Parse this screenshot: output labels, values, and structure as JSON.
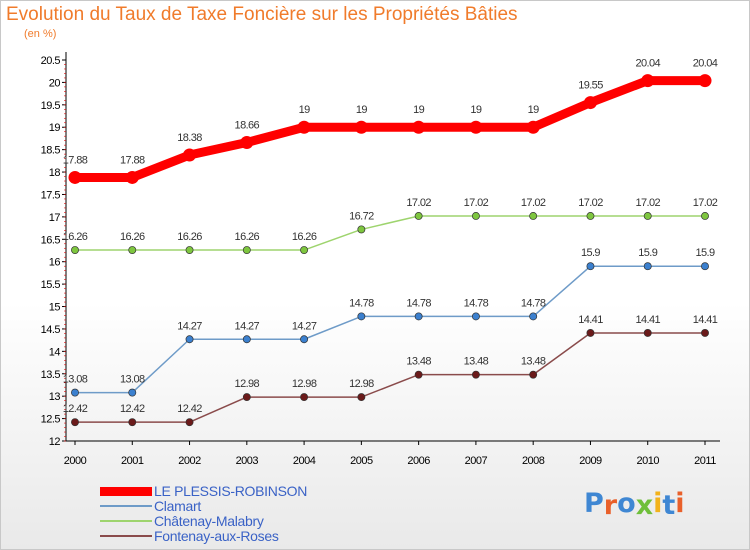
{
  "header": {
    "title": "Evolution du Taux de Taxe Foncière sur les Propriétés Bâties",
    "subtitle": "(en %)"
  },
  "brand": {
    "logo_text": "Proxiti",
    "letter_colors": [
      "#3f87d3",
      "#e9602a",
      "#3f87d3",
      "#6fbf3a",
      "#f2b21b",
      "#3f87d3",
      "#e9602a"
    ]
  },
  "chart_data": {
    "type": "line",
    "x": [
      "2000",
      "2001",
      "2002",
      "2003",
      "2004",
      "2005",
      "2006",
      "2007",
      "2008",
      "2009",
      "2010",
      "2011"
    ],
    "ylim": [
      12,
      20.5
    ],
    "y_ticks": [
      "12",
      "12.5",
      "13",
      "13.5",
      "14",
      "14.5",
      "15",
      "15.5",
      "16",
      "16.5",
      "17",
      "17.5",
      "18",
      "18.5",
      "19",
      "19.5",
      "20",
      "20.5"
    ],
    "grid": false,
    "legend_position": "bottom-left",
    "series": [
      {
        "name": "LE PLESSIS-ROBINSON",
        "color": "#ff0000",
        "emphasis": true,
        "values": [
          17.88,
          17.88,
          18.38,
          18.66,
          19,
          19,
          19,
          19,
          19,
          19.55,
          20.04,
          20.04
        ],
        "labels": [
          "17.88",
          "17.88",
          "18.38",
          "18.66",
          "19",
          "19",
          "19",
          "19",
          "19",
          "19.55",
          "20.04",
          "20.04"
        ]
      },
      {
        "name": "Clamart",
        "color": "#6e9bc8",
        "point_color": "#3b80cf",
        "values": [
          13.08,
          13.08,
          14.27,
          14.27,
          14.27,
          14.78,
          14.78,
          14.78,
          14.78,
          15.9,
          15.9,
          15.9
        ],
        "labels": [
          "13.08",
          "13.08",
          "14.27",
          "14.27",
          "14.27",
          "14.78",
          "14.78",
          "14.78",
          "14.78",
          "15.9",
          "15.9",
          "15.9"
        ]
      },
      {
        "name": "Châtenay-Malabry",
        "color": "#9ed46e",
        "point_color": "#7ec63f",
        "values": [
          16.26,
          16.26,
          16.26,
          16.26,
          16.26,
          16.72,
          17.02,
          17.02,
          17.02,
          17.02,
          17.02,
          17.02
        ],
        "labels": [
          "16.26",
          "16.26",
          "16.26",
          "16.26",
          "16.26",
          "16.72",
          "17.02",
          "17.02",
          "17.02",
          "17.02",
          "17.02",
          "17.02"
        ]
      },
      {
        "name": "Fontenay-aux-Roses",
        "color": "#8a4b4b",
        "point_color": "#6b1a1a",
        "values": [
          12.42,
          12.42,
          12.42,
          12.98,
          12.98,
          12.98,
          13.48,
          13.48,
          13.48,
          14.41,
          14.41,
          14.41
        ],
        "labels": [
          "12.42",
          "12.42",
          "12.42",
          "12.98",
          "12.98",
          "12.98",
          "13.48",
          "13.48",
          "13.48",
          "14.41",
          "14.41",
          "14.41"
        ]
      }
    ]
  }
}
